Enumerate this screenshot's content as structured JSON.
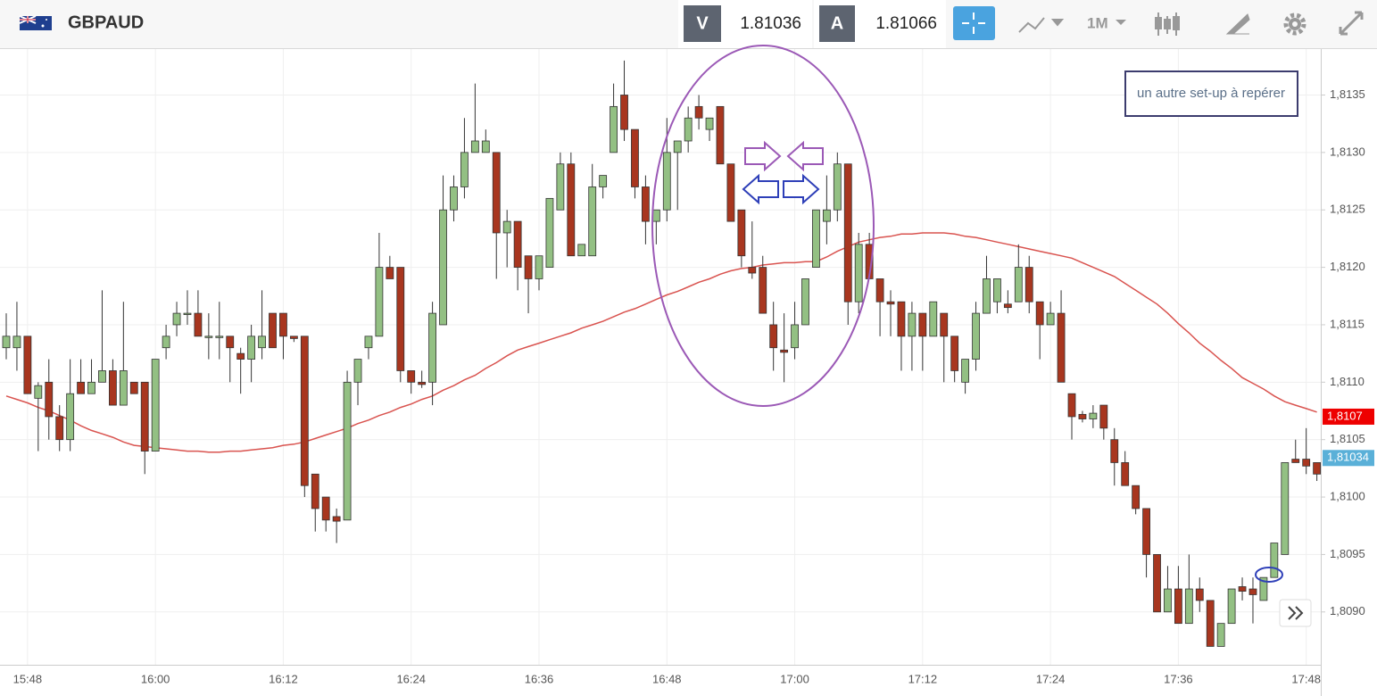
{
  "header": {
    "symbol": "GBPAUD",
    "bid_label": "V",
    "bid": "1.81036",
    "ask_label": "A",
    "ask": "1.81066",
    "timeframe": "1M"
  },
  "chart_data": {
    "type": "candlestick",
    "annotation": "un autre set-up à repérer",
    "categories": [
      null,
      null,
      "15:48",
      null,
      null,
      null,
      null,
      null,
      null,
      null,
      null,
      null,
      null,
      null,
      "16:00",
      null,
      null,
      null,
      null,
      null,
      null,
      null,
      null,
      null,
      null,
      null,
      "16:12",
      null,
      null,
      null,
      null,
      null,
      null,
      null,
      null,
      null,
      null,
      null,
      "16:24",
      null,
      null,
      null,
      null,
      null,
      null,
      null,
      null,
      null,
      null,
      null,
      "16:36",
      null,
      null,
      null,
      null,
      null,
      null,
      null,
      null,
      null,
      null,
      null,
      "16:48",
      null,
      null,
      null,
      null,
      null,
      null,
      null,
      null,
      null,
      null,
      null,
      "17:00",
      null,
      null,
      null,
      null,
      null,
      null,
      null,
      null,
      null,
      null,
      null,
      "17:12",
      null,
      null,
      null,
      null,
      null,
      null,
      null,
      null,
      null,
      null,
      null,
      "17:24",
      null,
      null,
      null,
      null,
      null,
      null,
      null,
      null,
      null,
      null,
      null,
      "17:36",
      null,
      null,
      null,
      null,
      null,
      null,
      null,
      null,
      null,
      null,
      null,
      "17:48",
      null
    ],
    "open": [
      1.8113,
      1.8113,
      1.8114,
      1.81086,
      1.811,
      1.8107,
      1.8105,
      1.811,
      1.8109,
      1.811,
      1.8111,
      1.8108,
      1.811,
      1.811,
      1.8104,
      1.8113,
      1.8115,
      1.8116,
      1.8116,
      1.8114,
      1.8114,
      1.8114,
      1.81125,
      1.8112,
      1.8113,
      1.8116,
      1.8116,
      1.8114,
      1.8114,
      1.8102,
      1.81,
      1.80983,
      1.8098,
      1.811,
      1.8113,
      1.8114,
      1.812,
      1.812,
      1.8111,
      1.811,
      1.811,
      1.8115,
      1.8125,
      1.8127,
      1.813,
      1.813,
      1.813,
      1.8123,
      1.8124,
      1.8121,
      1.8119,
      1.812,
      1.8125,
      1.8129,
      1.8121,
      1.8121,
      1.8127,
      1.813,
      1.8135,
      1.8132,
      1.8127,
      1.8124,
      1.8125,
      1.813,
      1.8131,
      1.8134,
      1.8132,
      1.8134,
      1.8129,
      1.8125,
      1.812,
      1.812,
      1.8115,
      1.81128,
      1.8113,
      1.8115,
      1.812,
      1.8124,
      1.8125,
      1.8129,
      1.8117,
      1.8122,
      1.8119,
      1.8117,
      1.8117,
      1.8114,
      1.8116,
      1.8114,
      1.8116,
      1.8114,
      1.811,
      1.8112,
      1.8116,
      1.8117,
      1.81168,
      1.8117,
      1.812,
      1.8117,
      1.8115,
      1.8116,
      1.8109,
      1.81072,
      1.81068,
      1.8108,
      1.8105,
      1.8103,
      1.8101,
      1.8099,
      1.8095,
      1.809,
      1.8092,
      1.8089,
      1.8092,
      1.8091,
      1.8087,
      1.8089,
      1.80922,
      1.8092,
      1.8091,
      1.8093,
      1.8095,
      1.81033,
      1.81033,
      1.8103
    ],
    "high": [
      1.8116,
      1.8117,
      1.8114,
      1.811,
      1.8112,
      1.8108,
      1.8112,
      1.8112,
      1.8112,
      1.8118,
      1.8112,
      1.8117,
      1.811,
      1.811,
      1.8112,
      1.8115,
      1.8117,
      1.8118,
      1.8118,
      1.8116,
      1.8117,
      1.8114,
      1.8113,
      1.8115,
      1.8118,
      1.8116,
      1.8116,
      1.8114,
      1.8114,
      1.8102,
      1.81,
      1.8099,
      1.8111,
      1.8112,
      1.8114,
      1.8123,
      1.8121,
      1.812,
      1.8111,
      1.8111,
      1.8117,
      1.8128,
      1.8128,
      1.8133,
      1.8136,
      1.8132,
      1.813,
      1.8125,
      1.8124,
      1.8121,
      1.8121,
      1.8126,
      1.813,
      1.813,
      1.8122,
      1.8129,
      1.8128,
      1.8136,
      1.8138,
      1.8132,
      1.8128,
      1.8125,
      1.8133,
      1.8131,
      1.8134,
      1.8135,
      1.8133,
      1.8134,
      1.8129,
      1.8125,
      1.8124,
      1.8121,
      1.8117,
      1.8116,
      1.8117,
      1.8119,
      1.8125,
      1.8128,
      1.813,
      1.8129,
      1.8123,
      1.8123,
      1.8119,
      1.8118,
      1.8117,
      1.8117,
      1.8116,
      1.8117,
      1.8116,
      1.8114,
      1.8112,
      1.8117,
      1.8121,
      1.8119,
      1.8118,
      1.8122,
      1.8121,
      1.8117,
      1.8117,
      1.8118,
      1.8109,
      1.81075,
      1.8108,
      1.8108,
      1.8106,
      1.8104,
      1.8101,
      1.8099,
      1.8095,
      1.8094,
      1.8094,
      1.8095,
      1.8093,
      1.8091,
      1.8089,
      1.8092,
      1.8093,
      1.8093,
      1.8093,
      1.8096,
      1.8103,
      1.8105,
      1.8106,
      1.8103
    ],
    "low": [
      1.8112,
      1.8111,
      1.8109,
      1.8104,
      1.8105,
      1.8104,
      1.8104,
      1.8109,
      1.8109,
      1.811,
      1.8108,
      1.8108,
      1.8109,
      1.8102,
      1.8104,
      1.8112,
      1.8114,
      1.8115,
      1.8114,
      1.8112,
      1.8112,
      1.811,
      1.8109,
      1.811,
      1.8112,
      1.8113,
      1.8112,
      1.81135,
      1.81,
      1.8097,
      1.8097,
      1.8096,
      1.8098,
      1.8108,
      1.8112,
      1.8114,
      1.8119,
      1.811,
      1.8109,
      1.81095,
      1.8108,
      1.8115,
      1.8124,
      1.8126,
      1.813,
      1.813,
      1.8119,
      1.812,
      1.8118,
      1.8116,
      1.8118,
      1.812,
      1.8125,
      1.8121,
      1.8121,
      1.8121,
      1.8126,
      1.813,
      1.8131,
      1.8126,
      1.8122,
      1.8122,
      1.8124,
      1.8125,
      1.813,
      1.8132,
      1.8131,
      1.8129,
      1.8124,
      1.812,
      1.8119,
      1.8116,
      1.8111,
      1.811,
      1.8112,
      1.8115,
      1.812,
      1.8122,
      1.8124,
      1.8115,
      1.8116,
      1.8119,
      1.8114,
      1.8114,
      1.8111,
      1.8111,
      1.8111,
      1.8114,
      1.811,
      1.811,
      1.8109,
      1.8111,
      1.8116,
      1.8116,
      1.8116,
      1.8117,
      1.8116,
      1.8112,
      1.8115,
      1.811,
      1.8105,
      1.81065,
      1.8106,
      1.8105,
      1.8101,
      1.8101,
      1.80985,
      1.8093,
      1.809,
      1.809,
      1.8089,
      1.8089,
      1.809,
      1.8087,
      1.8087,
      1.8089,
      1.8091,
      1.8089,
      1.8091,
      1.8093,
      1.8095,
      1.8103,
      1.8102,
      1.81014
    ],
    "close": [
      1.8114,
      1.8114,
      1.8109,
      1.81097,
      1.8107,
      1.8105,
      1.8109,
      1.8109,
      1.811,
      1.8111,
      1.8108,
      1.8111,
      1.8109,
      1.8104,
      1.8112,
      1.8114,
      1.8116,
      1.8116,
      1.8114,
      1.8114,
      1.8114,
      1.8113,
      1.8112,
      1.8114,
      1.8114,
      1.8113,
      1.8114,
      1.81138,
      1.8101,
      1.8099,
      1.8098,
      1.80979,
      1.811,
      1.8112,
      1.8114,
      1.812,
      1.8119,
      1.8111,
      1.811,
      1.81098,
      1.8116,
      1.8125,
      1.8127,
      1.813,
      1.8131,
      1.8131,
      1.8123,
      1.8124,
      1.812,
      1.8119,
      1.8121,
      1.8126,
      1.8129,
      1.8121,
      1.8122,
      1.8127,
      1.8128,
      1.8134,
      1.8132,
      1.8127,
      1.8124,
      1.8125,
      1.813,
      1.8131,
      1.8133,
      1.8133,
      1.8133,
      1.8129,
      1.8124,
      1.8121,
      1.81195,
      1.8116,
      1.8113,
      1.81126,
      1.8115,
      1.8119,
      1.8125,
      1.8125,
      1.8129,
      1.8117,
      1.8122,
      1.8119,
      1.8117,
      1.81168,
      1.8114,
      1.8116,
      1.8114,
      1.8117,
      1.8114,
      1.8111,
      1.8112,
      1.8116,
      1.8119,
      1.8119,
      1.81165,
      1.812,
      1.8117,
      1.8115,
      1.8116,
      1.811,
      1.8107,
      1.81068,
      1.81073,
      1.8106,
      1.8103,
      1.8101,
      1.8099,
      1.8095,
      1.809,
      1.8092,
      1.8089,
      1.8092,
      1.8091,
      1.8087,
      1.8089,
      1.8092,
      1.80918,
      1.80915,
      1.8093,
      1.8096,
      1.8103,
      1.8103,
      1.81027,
      1.8102
    ],
    "up_color": "#93c083",
    "down_color": "#a8361f",
    "moving_average": {
      "color": "#d9534f",
      "values": [
        1.81088,
        1.81085,
        1.81082,
        1.81078,
        1.81075,
        1.81071,
        1.81067,
        1.81062,
        1.81058,
        1.81055,
        1.81052,
        1.81048,
        1.81045,
        1.81044,
        1.81043,
        1.81042,
        1.81041,
        1.8104,
        1.8104,
        1.81039,
        1.81039,
        1.8104,
        1.8104,
        1.81041,
        1.81042,
        1.81043,
        1.81045,
        1.81046,
        1.81048,
        1.81051,
        1.81054,
        1.81057,
        1.8106,
        1.81064,
        1.81067,
        1.81071,
        1.81074,
        1.81078,
        1.81081,
        1.81085,
        1.81088,
        1.81093,
        1.81097,
        1.81102,
        1.81106,
        1.81112,
        1.81117,
        1.81123,
        1.81128,
        1.81131,
        1.81134,
        1.81137,
        1.8114,
        1.81143,
        1.81147,
        1.8115,
        1.81153,
        1.81157,
        1.81161,
        1.81164,
        1.81168,
        1.81172,
        1.81176,
        1.81179,
        1.81183,
        1.81187,
        1.8119,
        1.81194,
        1.81197,
        1.81199,
        1.812,
        1.81202,
        1.81203,
        1.81204,
        1.81204,
        1.81205,
        1.81205,
        1.81209,
        1.81214,
        1.81218,
        1.81222,
        1.81224,
        1.81226,
        1.81227,
        1.81229,
        1.81229,
        1.8123,
        1.8123,
        1.8123,
        1.81229,
        1.81227,
        1.81226,
        1.81224,
        1.81222,
        1.8122,
        1.81218,
        1.81216,
        1.81214,
        1.81212,
        1.8121,
        1.81208,
        1.81204,
        1.812,
        1.81196,
        1.81192,
        1.81186,
        1.8118,
        1.81174,
        1.81168,
        1.8116,
        1.81151,
        1.81143,
        1.81134,
        1.81127,
        1.81119,
        1.81112,
        1.81104,
        1.81099,
        1.81094,
        1.81088,
        1.81083,
        1.8108,
        1.81077,
        1.81074
      ]
    },
    "ma_tag": {
      "value": 1.8107,
      "label": "1,8107",
      "color": "#ee0000"
    },
    "price_tag": {
      "value": 1.81034,
      "label": "1,81034",
      "color": "#5ab0d8"
    },
    "ylim": [
      1.80854,
      1.8139
    ],
    "yticks": [
      {
        "value": 1.809,
        "label": "1,8090"
      },
      {
        "value": 1.8095,
        "label": "1,8095"
      },
      {
        "value": 1.81,
        "label": "1,8100"
      },
      {
        "value": 1.8105,
        "label": "1,8105"
      },
      {
        "value": 1.811,
        "label": "1,8110"
      },
      {
        "value": 1.8115,
        "label": "1,8115"
      },
      {
        "value": 1.812,
        "label": "1,8120"
      },
      {
        "value": 1.8125,
        "label": "1,8125"
      },
      {
        "value": 1.813,
        "label": "1,8130"
      },
      {
        "value": 1.8135,
        "label": "1,8135"
      }
    ],
    "grid": true
  }
}
